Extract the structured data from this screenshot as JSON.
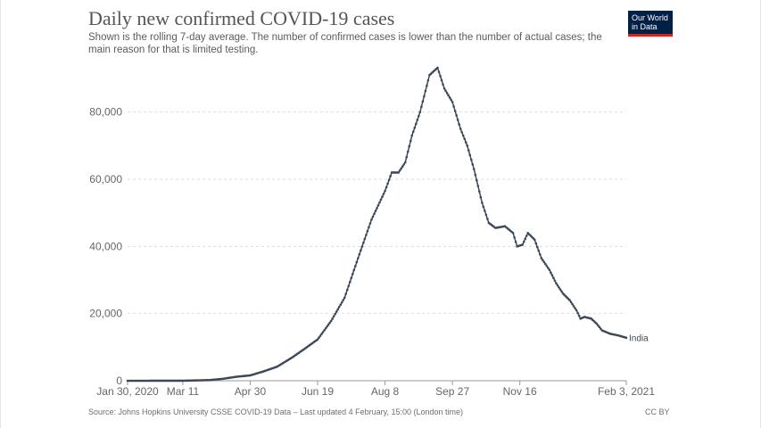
{
  "header": {
    "title": "Daily new confirmed COVID-19 cases",
    "subtitle": "Shown is the rolling 7-day average. The number of confirmed cases is lower than the number of actual cases; the main reason for that is limited testing.",
    "logo_line1": "Our World",
    "logo_line2": "in Data"
  },
  "footer": {
    "source": "Source: Johns Hopkins University CSSE COVID-19 Data – Last updated 4 February, 15:00 (London time)",
    "license": "CC BY"
  },
  "colors": {
    "series": "#3c4858",
    "grid": "#dddddd",
    "axis": "#999999",
    "logo_bg": "#002147",
    "logo_accent": "#ce261e"
  },
  "chart_data": {
    "type": "line",
    "title": "Daily new confirmed COVID-19 cases",
    "subtitle": "Shown is the rolling 7-day average. The number of confirmed cases is lower than the number of actual cases; the main reason for that is limited testing.",
    "xlabel": "",
    "ylabel": "",
    "xlim": [
      "2020-01-30",
      "2021-02-03"
    ],
    "ylim": [
      0,
      90000
    ],
    "x_ticks": [
      {
        "date": "2020-01-30",
        "label": "Jan 30, 2020"
      },
      {
        "date": "2020-03-11",
        "label": "Mar 11"
      },
      {
        "date": "2020-04-30",
        "label": "Apr 30"
      },
      {
        "date": "2020-06-19",
        "label": "Jun 19"
      },
      {
        "date": "2020-08-08",
        "label": "Aug 8"
      },
      {
        "date": "2020-09-27",
        "label": "Sep 27"
      },
      {
        "date": "2020-11-16",
        "label": "Nov 16"
      },
      {
        "date": "2021-02-03",
        "label": "Feb 3, 2021"
      }
    ],
    "y_ticks": [
      {
        "value": 0,
        "label": "0"
      },
      {
        "value": 20000,
        "label": "20,000"
      },
      {
        "value": 40000,
        "label": "40,000"
      },
      {
        "value": 60000,
        "label": "60,000"
      },
      {
        "value": 80000,
        "label": "80,000"
      }
    ],
    "grid": "horizontal dashed",
    "series": [
      {
        "name": "India",
        "points": [
          [
            "2020-01-30",
            0
          ],
          [
            "2020-03-11",
            10
          ],
          [
            "2020-03-31",
            200
          ],
          [
            "2020-04-10",
            600
          ],
          [
            "2020-04-20",
            1200
          ],
          [
            "2020-04-30",
            1600
          ],
          [
            "2020-05-10",
            2800
          ],
          [
            "2020-05-20",
            4200
          ],
          [
            "2020-05-31",
            6900
          ],
          [
            "2020-06-10",
            9700
          ],
          [
            "2020-06-19",
            12300
          ],
          [
            "2020-06-29",
            17800
          ],
          [
            "2020-07-09",
            24700
          ],
          [
            "2020-07-19",
            36500
          ],
          [
            "2020-07-29",
            48000
          ],
          [
            "2020-08-08",
            56500
          ],
          [
            "2020-08-13",
            62000
          ],
          [
            "2020-08-18",
            62000
          ],
          [
            "2020-08-23",
            65000
          ],
          [
            "2020-08-28",
            73000
          ],
          [
            "2020-09-03",
            80000
          ],
          [
            "2020-09-10",
            91000
          ],
          [
            "2020-09-16",
            93200
          ],
          [
            "2020-09-21",
            87000
          ],
          [
            "2020-09-27",
            83000
          ],
          [
            "2020-10-03",
            75000
          ],
          [
            "2020-10-08",
            70000
          ],
          [
            "2020-10-13",
            63000
          ],
          [
            "2020-10-19",
            53000
          ],
          [
            "2020-10-24",
            47000
          ],
          [
            "2020-10-29",
            45500
          ],
          [
            "2020-11-05",
            46000
          ],
          [
            "2020-11-11",
            44000
          ],
          [
            "2020-11-14",
            40000
          ],
          [
            "2020-11-18",
            40500
          ],
          [
            "2020-11-22",
            44000
          ],
          [
            "2020-11-27",
            42000
          ],
          [
            "2020-12-02",
            36500
          ],
          [
            "2020-12-08",
            33000
          ],
          [
            "2020-12-13",
            29000
          ],
          [
            "2020-12-18",
            26000
          ],
          [
            "2020-12-23",
            24000
          ],
          [
            "2020-12-28",
            21000
          ],
          [
            "2020-12-31",
            18500
          ],
          [
            "2021-01-03",
            19000
          ],
          [
            "2021-01-08",
            18500
          ],
          [
            "2021-01-12",
            17000
          ],
          [
            "2021-01-16",
            15000
          ],
          [
            "2021-01-22",
            14000
          ],
          [
            "2021-01-28",
            13500
          ],
          [
            "2021-02-03",
            12800
          ]
        ]
      }
    ]
  }
}
